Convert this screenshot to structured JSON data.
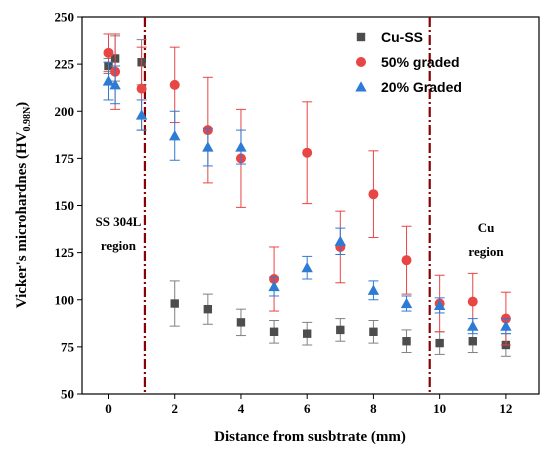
{
  "chart_data": {
    "type": "scatter",
    "xlabel": "Distance from susbtrate (mm)",
    "ylabel": "Vicker's microhardnes (HV",
    "ylabel_sub": "0.98N",
    "ylabel_close": ")",
    "xlim": [
      -0.8,
      13.0
    ],
    "ylim": [
      50,
      250
    ],
    "x_ticks": [
      0,
      2,
      4,
      6,
      8,
      10,
      12
    ],
    "y_ticks": [
      50,
      75,
      100,
      125,
      150,
      175,
      200,
      225,
      250
    ],
    "grid": false,
    "legend_position": "top-right",
    "series": [
      {
        "name": "Cu-SS",
        "marker": "square",
        "color": "#4d4d4d",
        "errcolor": "#808080",
        "x": [
          0,
          0.2,
          1,
          2,
          3,
          4,
          5,
          6,
          7,
          8,
          9,
          10,
          11,
          12
        ],
        "y": [
          224,
          228,
          226,
          98,
          95,
          88,
          83,
          82,
          84,
          83,
          78,
          77,
          78,
          76
        ],
        "err": [
          4,
          12,
          12,
          12,
          8,
          7,
          6,
          6,
          6,
          6,
          6,
          6,
          6,
          6
        ]
      },
      {
        "name": "50% graded",
        "marker": "circle",
        "color": "#e84545",
        "errcolor": "#e84545",
        "x": [
          0,
          0.2,
          1,
          2,
          3,
          4,
          5,
          6,
          7,
          8,
          9,
          10,
          11,
          12
        ],
        "y": [
          231,
          221,
          212,
          214,
          190,
          175,
          111,
          178,
          128,
          156,
          121,
          98,
          99,
          90
        ],
        "err": [
          10,
          20,
          22,
          20,
          28,
          26,
          17,
          27,
          19,
          23,
          18,
          15,
          15,
          14
        ]
      },
      {
        "name": "20% Graded",
        "marker": "triangle",
        "color": "#2e7bd6",
        "errcolor": "#2e7bd6",
        "x": [
          0,
          0.2,
          1,
          2,
          3,
          4,
          5,
          6,
          7,
          8,
          9,
          10,
          11,
          12
        ],
        "y": [
          216,
          214,
          198,
          187,
          181,
          181,
          107,
          117,
          131,
          105,
          98,
          97,
          86,
          86
        ],
        "err": [
          10,
          10,
          8,
          13,
          10,
          9,
          5,
          6,
          7,
          5,
          4,
          4,
          4,
          4
        ]
      }
    ],
    "vlines": [
      1.1,
      9.7
    ],
    "annotations": [
      {
        "lines": [
          "SS 304L",
          "region"
        ],
        "x": 0.3,
        "y": 139
      },
      {
        "lines": [
          "Cu",
          "region"
        ],
        "x": 11.4,
        "y": 136
      }
    ]
  }
}
